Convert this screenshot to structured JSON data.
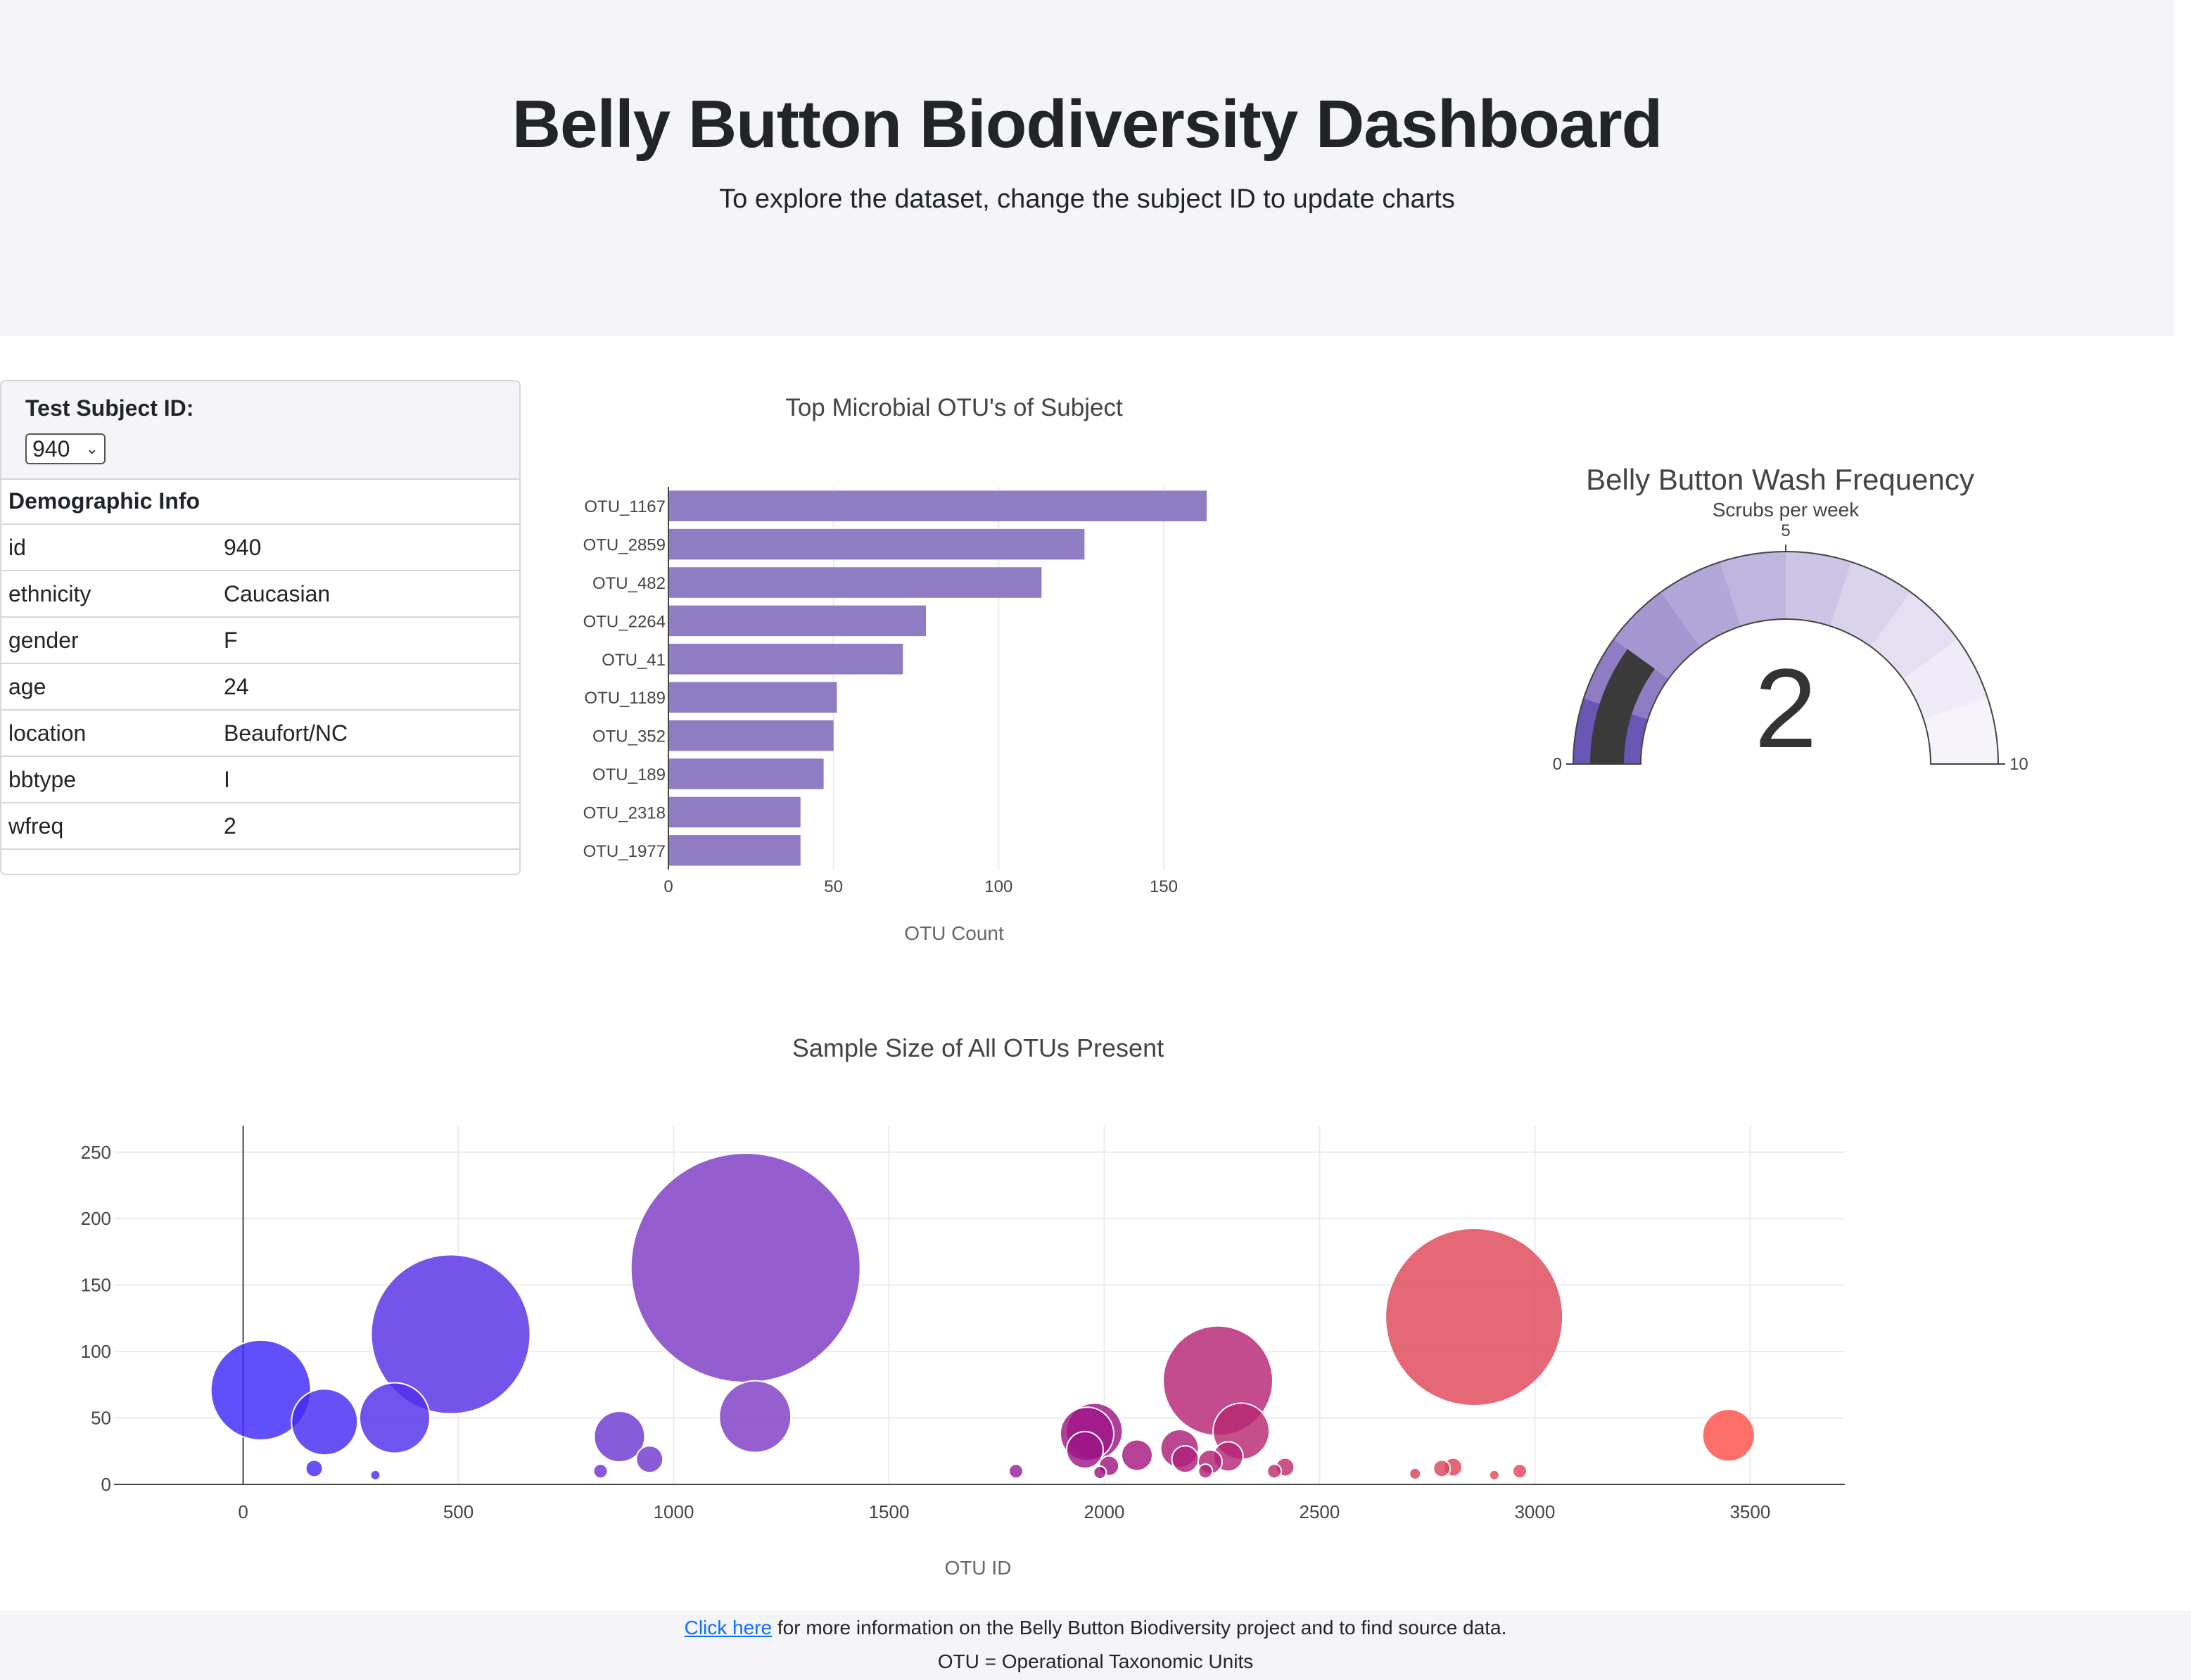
{
  "header": {
    "title": "Belly Button Biodiversity Dashboard",
    "subtitle": "To explore the dataset, change the subject ID to update charts"
  },
  "panel": {
    "select_label": "Test Subject ID:",
    "selected_id": "940",
    "demo_title": "Demographic Info",
    "rows": [
      {
        "key": "id",
        "value": "940"
      },
      {
        "key": "ethnicity",
        "value": "Caucasian"
      },
      {
        "key": "gender",
        "value": "F"
      },
      {
        "key": "age",
        "value": "24"
      },
      {
        "key": "location",
        "value": "Beaufort/NC"
      },
      {
        "key": "bbtype",
        "value": "I"
      },
      {
        "key": "wfreq",
        "value": "2"
      }
    ]
  },
  "colors": {
    "bar": "#8f7cc3",
    "gauge_needle": "#3a3a3a",
    "gauge_steps": [
      "#6a56b5",
      "#8f7cc3",
      "#a596d1",
      "#b3a6d8",
      "#c0b5df",
      "#cdc4e6",
      "#dad3ec",
      "#e5dff1",
      "#efebf7",
      "#f6f4fa"
    ]
  },
  "chart_data": [
    {
      "type": "bar",
      "orientation": "horizontal",
      "title": "Top Microbial OTU's of Subject",
      "xlabel": "OTU Count",
      "categories": [
        "OTU_1167",
        "OTU_2859",
        "OTU_482",
        "OTU_2264",
        "OTU_41",
        "OTU_1189",
        "OTU_352",
        "OTU_189",
        "OTU_2318",
        "OTU_1977"
      ],
      "values": [
        163,
        126,
        113,
        78,
        71,
        51,
        50,
        47,
        40,
        40
      ],
      "xlim": [
        0,
        163
      ],
      "xticks": [
        0,
        50,
        100,
        150
      ]
    },
    {
      "type": "gauge",
      "title": "Belly Button Wash Frequency",
      "subtitle": "Scrubs per week",
      "value": 2,
      "range": [
        0,
        10
      ],
      "ticks": [
        0,
        5,
        10
      ]
    },
    {
      "type": "scatter",
      "title": "Sample Size of All OTUs Present",
      "xlabel": "OTU ID",
      "xlim": [
        -300,
        3720
      ],
      "ylim": [
        0,
        270
      ],
      "xticks": [
        0,
        500,
        1000,
        1500,
        2000,
        2500,
        3000,
        3500
      ],
      "yticks": [
        0,
        50,
        100,
        150,
        200,
        250
      ],
      "points": [
        {
          "x": 41,
          "y": 71
        },
        {
          "x": 189,
          "y": 47
        },
        {
          "x": 352,
          "y": 50
        },
        {
          "x": 482,
          "y": 113
        },
        {
          "x": 165,
          "y": 12
        },
        {
          "x": 307,
          "y": 7
        },
        {
          "x": 830,
          "y": 10
        },
        {
          "x": 874,
          "y": 36
        },
        {
          "x": 944,
          "y": 19
        },
        {
          "x": 1167,
          "y": 163
        },
        {
          "x": 1189,
          "y": 51
        },
        {
          "x": 1795,
          "y": 10
        },
        {
          "x": 1960,
          "y": 38
        },
        {
          "x": 1955,
          "y": 26
        },
        {
          "x": 1977,
          "y": 40
        },
        {
          "x": 2011,
          "y": 14
        },
        {
          "x": 1990,
          "y": 9
        },
        {
          "x": 2076,
          "y": 22
        },
        {
          "x": 2175,
          "y": 27
        },
        {
          "x": 2188,
          "y": 19
        },
        {
          "x": 2246,
          "y": 17
        },
        {
          "x": 2264,
          "y": 78
        },
        {
          "x": 2318,
          "y": 40
        },
        {
          "x": 2288,
          "y": 21
        },
        {
          "x": 2235,
          "y": 10
        },
        {
          "x": 2395,
          "y": 10
        },
        {
          "x": 2420,
          "y": 13
        },
        {
          "x": 2722,
          "y": 8
        },
        {
          "x": 2784,
          "y": 12
        },
        {
          "x": 2810,
          "y": 13
        },
        {
          "x": 2859,
          "y": 126
        },
        {
          "x": 2906,
          "y": 7
        },
        {
          "x": 2965,
          "y": 10
        },
        {
          "x": 3450,
          "y": 37
        }
      ]
    }
  ],
  "footer": {
    "link_text": "Click here",
    "line1_rest": " for more information on the Belly Button Biodiversity project and to find source data.",
    "line2": "OTU = Operational Taxonomic Units"
  }
}
